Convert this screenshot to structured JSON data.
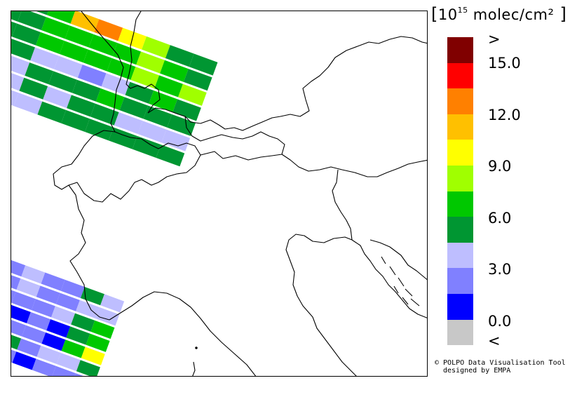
{
  "legend": {
    "unit_prefix": "10",
    "unit_exponent": "15",
    "unit_suffix": " molec/cm²",
    "bins": [
      {
        "color": "#800000"
      },
      {
        "color": "#ff0000"
      },
      {
        "color": "#ff8000"
      },
      {
        "color": "#ffc000"
      },
      {
        "color": "#ffff00"
      },
      {
        "color": "#a0ff00"
      },
      {
        "color": "#00c800"
      },
      {
        "color": "#009632"
      },
      {
        "color": "#bebeff"
      },
      {
        "color": "#8080ff"
      },
      {
        "color": "#0000ff"
      },
      {
        "color": "#c8c8c8"
      }
    ],
    "tick_labels": [
      ">",
      "15.0",
      "12.0",
      "9.0",
      "6.0",
      "3.0",
      "0.0",
      "<"
    ]
  },
  "credit": {
    "line1": "© POLPO Data Visualisation Tool",
    "line2": "designed by EMPA"
  },
  "map": {
    "border_color": "#000000",
    "swath_ne_rows": [
      [
        "#bebeff",
        "#009632",
        "#00c800",
        "#ffc000",
        "#ff8000",
        "#ffff00",
        "#a0ff00",
        "#009632",
        "#009632"
      ],
      [
        "#009632",
        "#009632",
        "#00c800",
        "#00c800",
        "#00c800",
        "#00c800",
        "#a0ff00",
        "#00c800",
        "#009632"
      ],
      [
        "#009632",
        "#009632",
        "#00c800",
        "#00c800",
        "#00c800",
        "#00c800",
        "#a0ff00",
        "#00c800",
        "#a0ff00"
      ],
      [
        "#8080ff",
        "#009632",
        "#bebeff",
        "#bebeff",
        "#8080ff",
        "#bebeff",
        "#009632",
        "#00c800",
        "#009632"
      ],
      [
        "#bebeff",
        "#bebeff",
        "#009632",
        "#009632",
        "#009632",
        "#00c800",
        "#009632",
        "#009632",
        "#009632"
      ],
      [
        "#bebeff",
        "#bebeff",
        "#009632",
        "#bebeff",
        "#009632",
        "#009632",
        "#bebeff",
        "#bebeff",
        "#bebeff"
      ],
      [
        "#bebeff",
        "#bebeff",
        "#bebeff",
        "#009632",
        "#009632",
        "#009632",
        "#009632",
        "#009632",
        "#009632"
      ]
    ],
    "swath_sw_rows": [
      [
        "#8080ff",
        "#bebeff",
        "#8080ff",
        "#8080ff",
        "#009632",
        "#bebeff"
      ],
      [
        "#8080ff",
        "#bebeff",
        "#8080ff",
        "#8080ff",
        "#bebeff",
        "#bebeff"
      ],
      [
        "#8080ff",
        "#8080ff",
        "#8080ff",
        "#bebeff",
        "#009632",
        "#00c800"
      ],
      [
        "#8080ff",
        "#0000ff",
        "#8080ff",
        "#0000ff",
        "#009632",
        "#00c800"
      ],
      [
        "#bebeff",
        "#8080ff",
        "#8080ff",
        "#0000ff",
        "#00c800",
        "#ffff00"
      ],
      [
        "#009632",
        "#009632",
        "#8080ff",
        "#bebeff",
        "#bebeff",
        "#009632"
      ],
      [
        "#8080ff",
        "#8080ff",
        "#0000ff",
        "#8080ff",
        "#8080ff",
        "#8080ff"
      ]
    ]
  }
}
